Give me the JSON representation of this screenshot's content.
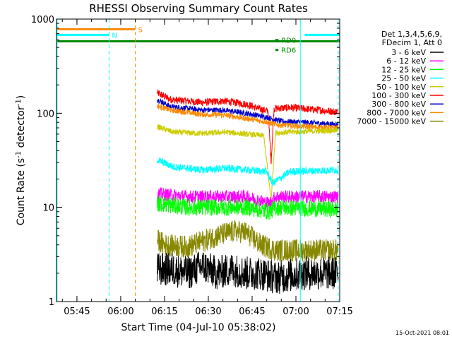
{
  "chart_data": {
    "type": "line",
    "title": "RHESSI Observing Summary Count Rates",
    "xlabel": "Start Time (04-Jul-10 05:38:02)",
    "ylabel_parts": [
      "Count Rate (s",
      "-1",
      " detector",
      "-1",
      ")"
    ],
    "yscale": "log",
    "ylim": [
      1,
      1000
    ],
    "xlim_minutes": [
      5.0,
      102.0
    ],
    "x_ticks": [
      {
        "min": 12,
        "label": "05:45"
      },
      {
        "min": 27,
        "label": "06:00"
      },
      {
        "min": 42,
        "label": "06:15"
      },
      {
        "min": 57,
        "label": "06:30"
      },
      {
        "min": 72,
        "label": "06:45"
      },
      {
        "min": 87,
        "label": "07:00"
      },
      {
        "min": 102,
        "label": "07:15"
      }
    ],
    "y_ticks": [
      {
        "value": 1,
        "label": "1"
      },
      {
        "value": 10,
        "label": "10"
      },
      {
        "value": 100,
        "label": "100"
      },
      {
        "value": 1000,
        "label": "1000"
      }
    ],
    "legend": {
      "position": "right",
      "header": [
        "Det 1,3,4,5,6,9,",
        "FDecim 1, Att 0"
      ],
      "entries": [
        {
          "label": "3 - 6 keV",
          "color": "#000000"
        },
        {
          "label": "6 - 12 keV",
          "color": "#ff00ff"
        },
        {
          "label": "12 - 25 keV",
          "color": "#00ff00"
        },
        {
          "label": "25 - 50 keV",
          "color": "#00ffff"
        },
        {
          "label": "50 - 100 keV",
          "color": "#cccc00"
        },
        {
          "label": "100 - 300 keV",
          "color": "#ff0000"
        },
        {
          "label": "300 - 800 keV",
          "color": "#0000cc"
        },
        {
          "label": "800 - 7000 keV",
          "color": "#ff8800"
        },
        {
          "label": "7000 - 15000 keV",
          "color": "#888800"
        }
      ]
    },
    "series": [
      {
        "name": "100 - 300 keV",
        "color": "#ff0000",
        "noise": 0.04,
        "points": [
          [
            39.5,
            165
          ],
          [
            44,
            140
          ],
          [
            55,
            130
          ],
          [
            62,
            135
          ],
          [
            70,
            125
          ],
          [
            75,
            110
          ],
          [
            77.5,
            105
          ],
          [
            78.5,
            30
          ],
          [
            79.5,
            112
          ],
          [
            85,
            115
          ],
          [
            95,
            108
          ],
          [
            101.5,
            103
          ]
        ]
      },
      {
        "name": "300 - 800 keV",
        "color": "#0000cc",
        "noise": 0.03,
        "points": [
          [
            39.5,
            140
          ],
          [
            44,
            118
          ],
          [
            55,
            108
          ],
          [
            62,
            108
          ],
          [
            70,
            100
          ],
          [
            76,
            92
          ],
          [
            78.5,
            88
          ],
          [
            82,
            82
          ],
          [
            90,
            80
          ],
          [
            101.5,
            76
          ]
        ]
      },
      {
        "name": "800 - 7000 keV",
        "color": "#ff8800",
        "noise": 0.03,
        "points": [
          [
            39.5,
            120
          ],
          [
            44,
            108
          ],
          [
            55,
            97
          ],
          [
            62,
            96
          ],
          [
            70,
            88
          ],
          [
            76,
            82
          ],
          [
            80,
            76
          ],
          [
            90,
            72
          ],
          [
            101.5,
            70
          ]
        ]
      },
      {
        "name": "50 - 100 keV",
        "color": "#cccc00",
        "noise": 0.03,
        "points": [
          [
            39.5,
            72
          ],
          [
            45,
            63
          ],
          [
            55,
            61
          ],
          [
            63,
            63
          ],
          [
            70,
            60
          ],
          [
            76,
            58
          ],
          [
            78.5,
            12
          ],
          [
            80,
            62
          ],
          [
            90,
            64
          ],
          [
            101.5,
            66
          ]
        ]
      },
      {
        "name": "25 - 50 keV",
        "color": "#00ffff",
        "noise": 0.04,
        "points": [
          [
            39.5,
            32
          ],
          [
            45,
            27
          ],
          [
            55,
            25
          ],
          [
            63,
            26
          ],
          [
            70,
            25
          ],
          [
            77,
            24
          ],
          [
            79,
            18
          ],
          [
            85,
            24
          ],
          [
            101.5,
            25
          ]
        ]
      },
      {
        "name": "6 - 12 keV",
        "color": "#ff00ff",
        "noise": 0.07,
        "points": [
          [
            39.5,
            14
          ],
          [
            50,
            13
          ],
          [
            60,
            13
          ],
          [
            70,
            13
          ],
          [
            78,
            11
          ],
          [
            80,
            13
          ],
          [
            101.5,
            13
          ]
        ]
      },
      {
        "name": "12 - 25 keV",
        "color": "#00ff00",
        "noise": 0.09,
        "points": [
          [
            39.5,
            11
          ],
          [
            50,
            10
          ],
          [
            60,
            10
          ],
          [
            70,
            10
          ],
          [
            78,
            9
          ],
          [
            80,
            10
          ],
          [
            101.5,
            9.5
          ]
        ]
      },
      {
        "name": "7000 - 15000 keV",
        "color": "#888800",
        "noise": 0.12,
        "points": [
          [
            39.5,
            4.5
          ],
          [
            42,
            4.0
          ],
          [
            50,
            3.8
          ],
          [
            60,
            5
          ],
          [
            66,
            5.6
          ],
          [
            70,
            5.4
          ],
          [
            75,
            4
          ],
          [
            80,
            3.5
          ],
          [
            101.5,
            3.5
          ]
        ]
      },
      {
        "name": "3 - 6 keV",
        "color": "#000000",
        "noise": 0.18,
        "points": [
          [
            39.5,
            2.2
          ],
          [
            45,
            2.2
          ],
          [
            50,
            2.0
          ],
          [
            55,
            2.4
          ],
          [
            60,
            2.0
          ],
          [
            65,
            2.2
          ],
          [
            70,
            2.0
          ],
          [
            75,
            2.0
          ],
          [
            80,
            1.8
          ],
          [
            90,
            2.0
          ],
          [
            101.5,
            2.0
          ]
        ]
      }
    ],
    "attenuator_bars": [
      {
        "label": "S",
        "color": "#ff8800",
        "y": 780,
        "x_start": 5.0,
        "x_end": 32.0
      },
      {
        "label": "N",
        "color": "#00ffff",
        "y": 680,
        "x_start": 5.0,
        "x_end": 23.0
      },
      {
        "label": "",
        "color": "#00ffff",
        "y": 680,
        "x_start": 90.0,
        "x_end": 102.0
      },
      {
        "label": "",
        "color": "#008800",
        "y": 580,
        "x_start": 5.0,
        "x_end": 102.0
      },
      {
        "label": "RD0",
        "color": "#008800",
        "y": 600,
        "x_start": 80.0,
        "x_end": 81.0
      },
      {
        "label": "RD6",
        "color": "#008800",
        "y": 470,
        "x_start": 80.0,
        "x_end": 81.0
      }
    ],
    "vlines": [
      {
        "min": 5.2,
        "color": "#00ffff",
        "style": "solid"
      },
      {
        "min": 23.0,
        "color": "#00ffff",
        "style": "dashed"
      },
      {
        "min": 32.0,
        "color": "#ff8800",
        "style": "dashed"
      },
      {
        "min": 88.5,
        "color": "#00ffff",
        "style": "solid"
      },
      {
        "min": 101.5,
        "color": "#00ffff",
        "style": "dashed"
      }
    ]
  },
  "footer": {
    "timestamp": "15-Oct-2021 08:01"
  }
}
